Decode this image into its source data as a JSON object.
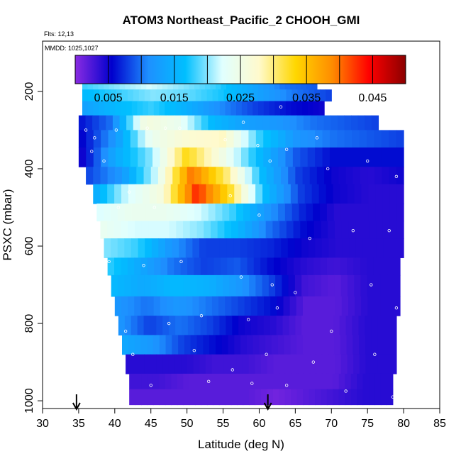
{
  "chart_data": {
    "type": "heatmap",
    "title": "ATOM3 Northeast_Pacific_2 CHOOH_GMI",
    "annotations": [
      "Flts: 12,13",
      "MMDD: 1025,1027"
    ],
    "xlabel": "Latitude (deg N)",
    "ylabel": "PSXC (mbar)",
    "xlim": [
      30,
      85
    ],
    "ylim": [
      1020,
      70
    ],
    "x_ticks": [
      30,
      35,
      40,
      45,
      50,
      55,
      60,
      65,
      70,
      75,
      80,
      85
    ],
    "y_ticks": [
      200,
      400,
      600,
      800,
      1000
    ],
    "colorbar": {
      "min": 0.0,
      "max": 0.05,
      "tick_values": [
        0.005,
        0.015,
        0.025,
        0.035,
        0.045
      ],
      "tick_labels": [
        "0.005",
        "0.015",
        "0.025",
        "0.035",
        "0.045"
      ],
      "colors": [
        "#8a2be2",
        "#0000cd",
        "#1e90ff",
        "#00bfff",
        "#e0ffff",
        "#fffacd",
        "#ffd700",
        "#ff8c00",
        "#ff0000",
        "#8b0000"
      ]
    },
    "arrow_markers_latitude": [
      34.7,
      61.2
    ],
    "layers": [
      {
        "p_top": 170,
        "p_bot": 195,
        "lat_min": 35.5,
        "lat_max": 68,
        "values": [
          0.018,
          0.02,
          0.022,
          0.02,
          0.018,
          0.014,
          0.01,
          0.009
        ]
      },
      {
        "p_top": 195,
        "p_bot": 225,
        "lat_min": 35.5,
        "lat_max": 70,
        "values": [
          0.016,
          0.018,
          0.02,
          0.019,
          0.017,
          0.013,
          0.01,
          0.008
        ]
      },
      {
        "p_top": 225,
        "p_bot": 262,
        "lat_min": 35.5,
        "lat_max": 69,
        "values": [
          0.013,
          0.016,
          0.018,
          0.015,
          0.011,
          0.008,
          0.006,
          0.005
        ]
      },
      {
        "p_top": 262,
        "p_bot": 300,
        "lat_min": 35,
        "lat_max": 76.5,
        "values": [
          0.006,
          0.01,
          0.026,
          0.024,
          0.016,
          0.013,
          0.012,
          0.01,
          0.009,
          0.008
        ]
      },
      {
        "p_top": 300,
        "p_bot": 345,
        "lat_min": 35,
        "lat_max": 80,
        "values": [
          0.005,
          0.012,
          0.024,
          0.027,
          0.028,
          0.018,
          0.012,
          0.01,
          0.009,
          0.008
        ]
      },
      {
        "p_top": 345,
        "p_bot": 395,
        "lat_min": 35,
        "lat_max": 80,
        "values": [
          0.004,
          0.014,
          0.02,
          0.033,
          0.025,
          0.016,
          0.009,
          0.006,
          0.006,
          0.006
        ]
      },
      {
        "p_top": 395,
        "p_bot": 440,
        "lat_min": 36,
        "lat_max": 80,
        "values": [
          0.008,
          0.012,
          0.022,
          0.04,
          0.03,
          0.016,
          0.008,
          0.005,
          0.004,
          0.005
        ]
      },
      {
        "p_top": 440,
        "p_bot": 490,
        "lat_min": 37,
        "lat_max": 80,
        "values": [
          0.014,
          0.022,
          0.026,
          0.043,
          0.032,
          0.016,
          0.008,
          0.005,
          0.004,
          0.004
        ]
      },
      {
        "p_top": 490,
        "p_bot": 535,
        "lat_min": 37.5,
        "lat_max": 80,
        "values": [
          0.022,
          0.024,
          0.024,
          0.022,
          0.018,
          0.012,
          0.007,
          0.004,
          0.004,
          0.004
        ]
      },
      {
        "p_top": 535,
        "p_bot": 580,
        "lat_min": 38,
        "lat_max": 80,
        "values": [
          0.024,
          0.022,
          0.022,
          0.02,
          0.016,
          0.01,
          0.006,
          0.004,
          0.004,
          0.004
        ]
      },
      {
        "p_top": 580,
        "p_bot": 630,
        "lat_min": 38.5,
        "lat_max": 80,
        "values": [
          0.02,
          0.018,
          0.012,
          0.008,
          0.008,
          0.007,
          0.005,
          0.004,
          0.004,
          0.004
        ]
      },
      {
        "p_top": 630,
        "p_bot": 675,
        "lat_min": 39,
        "lat_max": 79.5,
        "values": [
          0.018,
          0.014,
          0.01,
          0.008,
          0.009,
          0.006,
          0.004,
          0.003,
          0.004,
          0.004
        ]
      },
      {
        "p_top": 675,
        "p_bot": 730,
        "lat_min": 39.5,
        "lat_max": 79.5,
        "values": [
          0.016,
          0.014,
          0.016,
          0.015,
          0.012,
          0.008,
          0.003,
          0.002,
          0.004,
          0.004
        ]
      },
      {
        "p_top": 730,
        "p_bot": 780,
        "lat_min": 40,
        "lat_max": 79.5,
        "values": [
          0.012,
          0.01,
          0.012,
          0.01,
          0.008,
          0.006,
          0.002,
          0.002,
          0.004,
          0.004
        ]
      },
      {
        "p_top": 780,
        "p_bot": 830,
        "lat_min": 40.5,
        "lat_max": 79,
        "values": [
          0.012,
          0.008,
          0.01,
          0.008,
          0.005,
          0.004,
          0.002,
          0.002,
          0.004,
          0.004
        ]
      },
      {
        "p_top": 830,
        "p_bot": 880,
        "lat_min": 41,
        "lat_max": 79,
        "values": [
          0.014,
          0.012,
          0.008,
          0.006,
          0.004,
          0.003,
          0.002,
          0.002,
          0.004,
          0.004
        ]
      },
      {
        "p_top": 880,
        "p_bot": 930,
        "lat_min": 41.5,
        "lat_max": 79,
        "values": [
          0.004,
          0.004,
          0.004,
          0.003,
          0.003,
          0.002,
          0.002,
          0.002,
          0.004,
          0.004
        ]
      },
      {
        "p_top": 930,
        "p_bot": 970,
        "lat_min": 42,
        "lat_max": 78.5,
        "values": [
          0.003,
          0.003,
          0.002,
          0.002,
          0.002,
          0.002,
          0.002,
          0.002,
          0.004,
          0.004
        ]
      },
      {
        "p_top": 970,
        "p_bot": 1010,
        "lat_min": 42,
        "lat_max": 78.5,
        "values": [
          0.002,
          0.002,
          0.002,
          0.002,
          0.002,
          0.001,
          0.002,
          0.003,
          0.004,
          0.004
        ]
      }
    ],
    "obs_points": [
      {
        "lat": 36.0,
        "p": 300
      },
      {
        "lat": 37.2,
        "p": 320
      },
      {
        "lat": 36.8,
        "p": 355
      },
      {
        "lat": 38.5,
        "p": 380
      },
      {
        "lat": 40.2,
        "p": 300
      },
      {
        "lat": 44.5,
        "p": 295
      },
      {
        "lat": 47.0,
        "p": 295
      },
      {
        "lat": 49.0,
        "p": 295
      },
      {
        "lat": 55.3,
        "p": 325
      },
      {
        "lat": 57.8,
        "p": 280
      },
      {
        "lat": 59.8,
        "p": 340
      },
      {
        "lat": 63.0,
        "p": 240
      },
      {
        "lat": 61.5,
        "p": 380
      },
      {
        "lat": 63.8,
        "p": 350
      },
      {
        "lat": 68.0,
        "p": 320
      },
      {
        "lat": 69.5,
        "p": 400
      },
      {
        "lat": 75.0,
        "p": 380
      },
      {
        "lat": 79.0,
        "p": 420
      },
      {
        "lat": 42.0,
        "p": 460
      },
      {
        "lat": 40.5,
        "p": 500
      },
      {
        "lat": 45.5,
        "p": 500
      },
      {
        "lat": 56.0,
        "p": 470
      },
      {
        "lat": 60.0,
        "p": 520
      },
      {
        "lat": 67.0,
        "p": 580
      },
      {
        "lat": 73.0,
        "p": 560
      },
      {
        "lat": 78.0,
        "p": 560
      },
      {
        "lat": 39.2,
        "p": 640
      },
      {
        "lat": 44.0,
        "p": 650
      },
      {
        "lat": 49.2,
        "p": 640
      },
      {
        "lat": 57.5,
        "p": 680
      },
      {
        "lat": 61.8,
        "p": 700
      },
      {
        "lat": 65.0,
        "p": 720
      },
      {
        "lat": 75.5,
        "p": 700
      },
      {
        "lat": 79.0,
        "p": 760
      },
      {
        "lat": 41.5,
        "p": 820
      },
      {
        "lat": 47.5,
        "p": 800
      },
      {
        "lat": 52.0,
        "p": 780
      },
      {
        "lat": 58.5,
        "p": 790
      },
      {
        "lat": 62.5,
        "p": 760
      },
      {
        "lat": 70.0,
        "p": 820
      },
      {
        "lat": 42.5,
        "p": 880
      },
      {
        "lat": 51.0,
        "p": 870
      },
      {
        "lat": 56.3,
        "p": 920
      },
      {
        "lat": 61.0,
        "p": 880
      },
      {
        "lat": 67.5,
        "p": 900
      },
      {
        "lat": 76.0,
        "p": 880
      },
      {
        "lat": 45.0,
        "p": 960
      },
      {
        "lat": 53.0,
        "p": 950
      },
      {
        "lat": 59.0,
        "p": 955
      },
      {
        "lat": 63.8,
        "p": 960
      },
      {
        "lat": 72.0,
        "p": 975
      },
      {
        "lat": 78.5,
        "p": 990
      }
    ]
  }
}
